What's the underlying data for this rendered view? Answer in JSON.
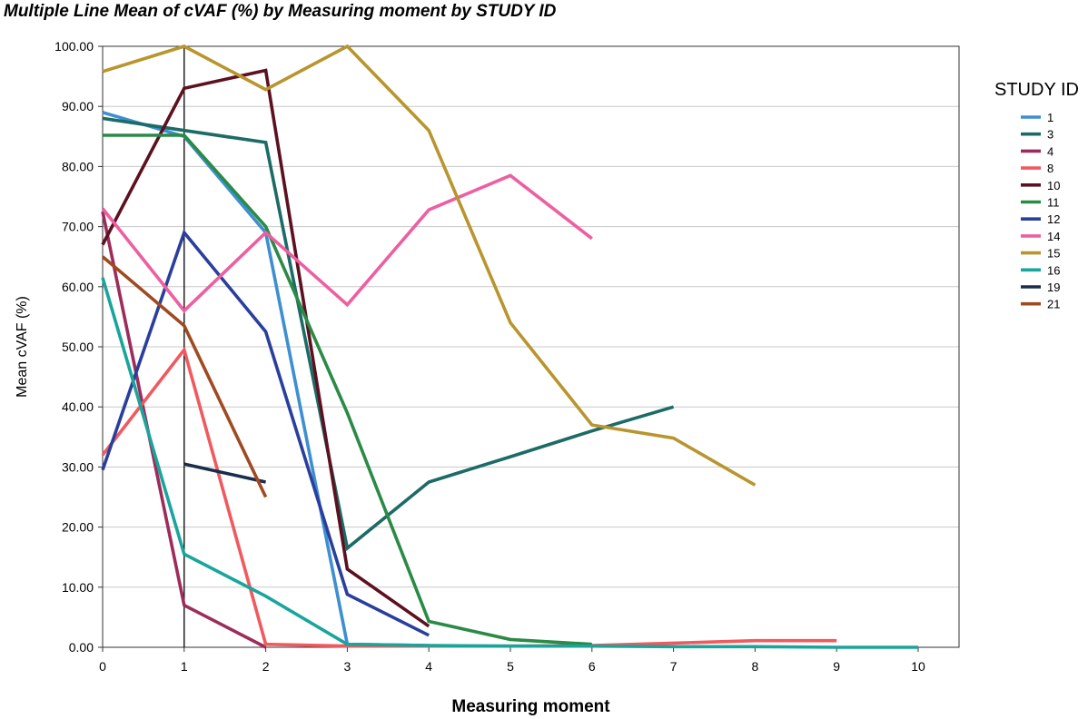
{
  "chart_data": {
    "type": "line",
    "title": "Multiple Line Mean of cVAF (%) by Measuring moment by STUDY ID",
    "xlabel": "Measuring moment",
    "ylabel": "Mean cVAF (%)",
    "xlim": [
      0,
      10.5
    ],
    "ylim": [
      0,
      100
    ],
    "x_ticks": [
      "0",
      "1",
      "2",
      "3",
      "4",
      "5",
      "6",
      "7",
      "8",
      "9",
      "10"
    ],
    "y_ticks": [
      "0.00",
      "10.00",
      "20.00",
      "30.00",
      "40.00",
      "50.00",
      "60.00",
      "70.00",
      "80.00",
      "90.00",
      "100.00"
    ],
    "grid": "horizontal",
    "reference_line_x": 1,
    "legend_title": "STUDY ID",
    "legend_position": "right",
    "series": [
      {
        "name": "1",
        "color": "#3d8fd1",
        "x": [
          0,
          1,
          2,
          3,
          4
        ],
        "y": [
          89.0,
          85.0,
          69.0,
          0.5,
          0.3
        ]
      },
      {
        "name": "3",
        "color": "#1c6b66",
        "x": [
          0,
          1,
          2,
          3,
          4,
          5,
          6,
          7
        ],
        "y": [
          88.0,
          86.0,
          84.0,
          16.5,
          27.5,
          31.7,
          36.0,
          40.0
        ]
      },
      {
        "name": "4",
        "color": "#9c2d5b",
        "x": [
          0,
          1,
          2
        ],
        "y": [
          72.5,
          7.0,
          0.0
        ]
      },
      {
        "name": "8",
        "color": "#ef5a5f",
        "x": [
          0,
          1,
          2,
          3,
          4,
          5,
          6,
          7,
          8,
          9
        ],
        "y": [
          32.0,
          49.5,
          0.5,
          0.2,
          0.2,
          0.2,
          0.3,
          0.7,
          1.1,
          1.1
        ]
      },
      {
        "name": "10",
        "color": "#5c1020",
        "x": [
          0,
          1,
          2,
          3,
          4
        ],
        "y": [
          67.0,
          93.0,
          96.0,
          13.0,
          3.5
        ]
      },
      {
        "name": "11",
        "color": "#2a8a46",
        "x": [
          0,
          1,
          2,
          3,
          4,
          5,
          6
        ],
        "y": [
          85.2,
          85.2,
          70.0,
          39.0,
          4.3,
          1.3,
          0.5
        ]
      },
      {
        "name": "12",
        "color": "#2a3f9c",
        "x": [
          0,
          1,
          2,
          3,
          4
        ],
        "y": [
          29.5,
          69.0,
          52.5,
          8.8,
          2.0
        ]
      },
      {
        "name": "14",
        "color": "#ed5fa0",
        "x": [
          0,
          1,
          2,
          3,
          4,
          5,
          6
        ],
        "y": [
          73.0,
          56.0,
          69.0,
          57.0,
          72.8,
          78.5,
          68.0
        ]
      },
      {
        "name": "15",
        "color": "#b8952e",
        "x": [
          0,
          1,
          2,
          3,
          4,
          5,
          6,
          7,
          8
        ],
        "y": [
          95.8,
          100.0,
          92.8,
          100.0,
          86.0,
          54.0,
          37.0,
          34.8,
          27.0
        ]
      },
      {
        "name": "16",
        "color": "#1aa59c",
        "x": [
          0,
          1,
          2,
          3,
          4,
          5,
          6,
          7,
          8,
          9,
          10
        ],
        "y": [
          61.5,
          15.5,
          8.5,
          0.5,
          0.3,
          0.2,
          0.2,
          0.1,
          0.1,
          0.0,
          0.0
        ]
      },
      {
        "name": "19",
        "color": "#1a2d4a",
        "x": [
          1,
          2
        ],
        "y": [
          30.5,
          27.5
        ]
      },
      {
        "name": "21",
        "color": "#a04a22",
        "x": [
          0,
          1,
          2
        ],
        "y": [
          65.0,
          53.5,
          25.0
        ]
      }
    ]
  }
}
